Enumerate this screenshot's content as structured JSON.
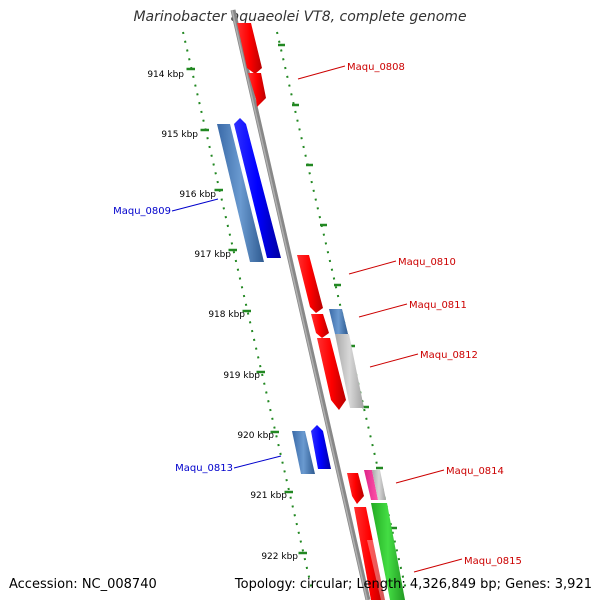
{
  "title": "Marinobacter aquaeolei VT8, complete genome",
  "footer": {
    "accession": "Accession: NC_008740",
    "summary": "Topology: circular; Length: 4,326,849 bp; Genes: 3,921"
  },
  "colors": {
    "forward": "#ff0000",
    "reverse": "#0000ff",
    "forward_label": "#cc0000",
    "reverse_label": "#0000cc",
    "backbone": "#808080",
    "tick": "#228822",
    "steelblue": "#4a7ab8",
    "gray_gene": "#bbbbbb",
    "pink_gene": "#ee3399",
    "green_gene": "#33cc33"
  },
  "kbp_labels": [
    "914 kbp",
    "915 kbp",
    "916 kbp",
    "917 kbp",
    "918 kbp",
    "919 kbp",
    "920 kbp",
    "921 kbp",
    "922 kbp"
  ],
  "gene_labels": [
    {
      "text": "Maqu_0808",
      "strand": "forward"
    },
    {
      "text": "Maqu_0809",
      "strand": "reverse"
    },
    {
      "text": "Maqu_0810",
      "strand": "forward"
    },
    {
      "text": "Maqu_0811",
      "strand": "forward"
    },
    {
      "text": "Maqu_0812",
      "strand": "forward"
    },
    {
      "text": "Maqu_0813",
      "strand": "reverse"
    },
    {
      "text": "Maqu_0814",
      "strand": "forward"
    },
    {
      "text": "Maqu_0815",
      "strand": "forward"
    }
  ]
}
